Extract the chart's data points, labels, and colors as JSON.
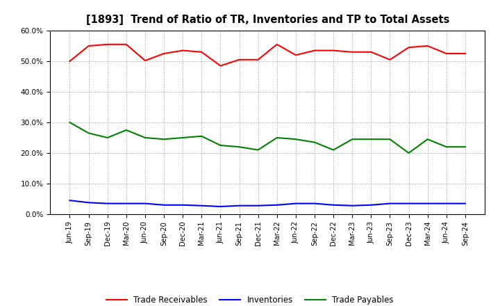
{
  "title": "[1893]  Trend of Ratio of TR, Inventories and TP to Total Assets",
  "labels": [
    "Jun-19",
    "Sep-19",
    "Dec-19",
    "Mar-20",
    "Jun-20",
    "Sep-20",
    "Dec-20",
    "Mar-21",
    "Jun-21",
    "Sep-21",
    "Dec-21",
    "Mar-22",
    "Jun-22",
    "Sep-22",
    "Dec-22",
    "Mar-23",
    "Jun-23",
    "Sep-23",
    "Dec-23",
    "Mar-24",
    "Jun-24",
    "Sep-24"
  ],
  "trade_receivables": [
    50.0,
    55.0,
    55.5,
    55.5,
    50.2,
    52.5,
    53.5,
    53.0,
    48.5,
    50.5,
    50.5,
    55.5,
    52.0,
    53.5,
    53.5,
    53.0,
    53.0,
    50.5,
    54.5,
    55.0,
    52.5,
    52.5
  ],
  "inventories": [
    4.5,
    3.8,
    3.5,
    3.5,
    3.5,
    3.0,
    3.0,
    2.8,
    2.5,
    2.8,
    2.8,
    3.0,
    3.5,
    3.5,
    3.0,
    2.8,
    3.0,
    3.5,
    3.5,
    3.5,
    3.5,
    3.5
  ],
  "trade_payables": [
    30.0,
    26.5,
    25.0,
    27.5,
    25.0,
    24.5,
    25.0,
    25.5,
    22.5,
    22.0,
    21.0,
    25.0,
    24.5,
    23.5,
    21.0,
    24.5,
    24.5,
    24.5,
    20.0,
    24.5,
    22.0,
    22.0
  ],
  "tr_color": "#ff0000",
  "inv_color": "#0000ff",
  "tp_color": "#008000",
  "line_width": 1.5,
  "ylim": [
    0,
    60
  ],
  "yticks": [
    0,
    10,
    20,
    30,
    40,
    50,
    60
  ],
  "background_color": "#ffffff",
  "grid_color": "#999999",
  "legend_labels": [
    "Trade Receivables",
    "Inventories",
    "Trade Payables"
  ]
}
